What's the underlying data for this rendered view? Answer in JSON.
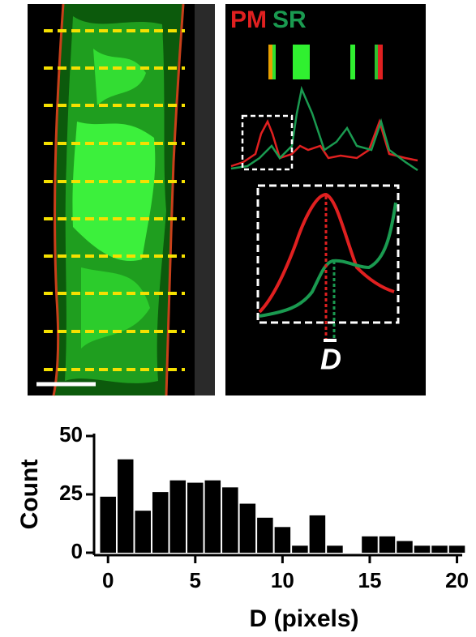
{
  "image_labels": {
    "pm": "PM",
    "sr": "SR",
    "d": "D"
  },
  "chart_data": {
    "type": "histogram",
    "xlabel": "D (pixels)",
    "ylabel": "Count",
    "bins": [
      -0.5,
      0.5,
      1.5,
      2.5,
      3.5,
      4.5,
      5.5,
      6.5,
      7.5,
      8.5,
      9.5,
      10.5,
      11.5,
      12.5,
      13.5,
      14.5,
      15.5,
      16.5,
      17.5,
      18.5,
      19.5,
      20.5
    ],
    "values": [
      24,
      40,
      18,
      26,
      31,
      30,
      31,
      28,
      21,
      15,
      11,
      3,
      16,
      3,
      0,
      7,
      7,
      5,
      3,
      3,
      3
    ],
    "color": "#000000",
    "xlim": [
      -0.8,
      20.3
    ],
    "ylim": [
      0,
      50
    ],
    "xticks": [
      0,
      5,
      10,
      15,
      20
    ],
    "yticks": [
      0,
      25,
      50
    ]
  }
}
